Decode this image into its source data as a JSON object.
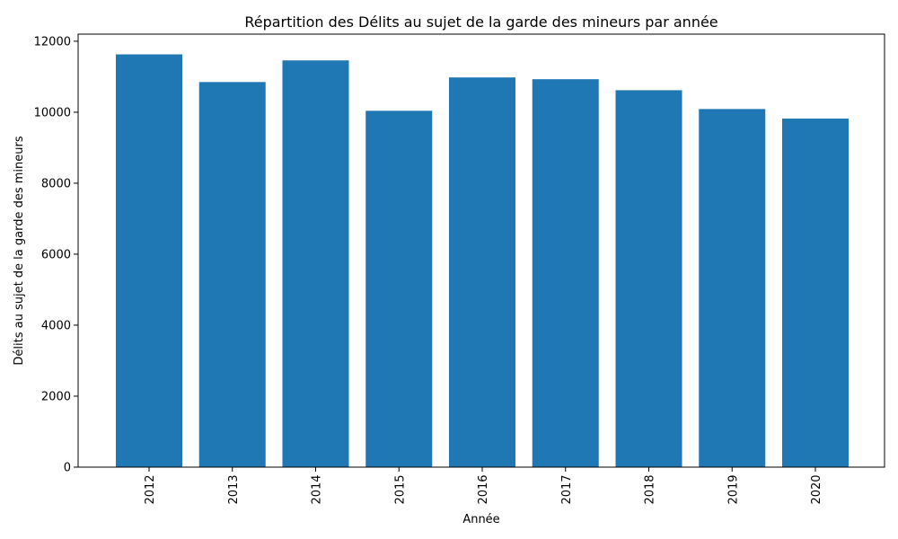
{
  "chart_data": {
    "type": "bar",
    "title": "Répartition des Délits au sujet de la garde des mineurs par année",
    "xlabel": "Année",
    "ylabel": "Délits au sujet de la garde des mineurs",
    "categories": [
      "2012",
      "2013",
      "2014",
      "2015",
      "2016",
      "2017",
      "2018",
      "2019",
      "2020"
    ],
    "values": [
      11630,
      10850,
      11460,
      10040,
      10980,
      10930,
      10620,
      10090,
      9820
    ],
    "ylim": [
      0,
      12200
    ],
    "yticks": [
      0,
      2000,
      4000,
      6000,
      8000,
      10000,
      12000
    ],
    "bar_color": "#1f77b4",
    "grid": false,
    "legend": "none"
  }
}
